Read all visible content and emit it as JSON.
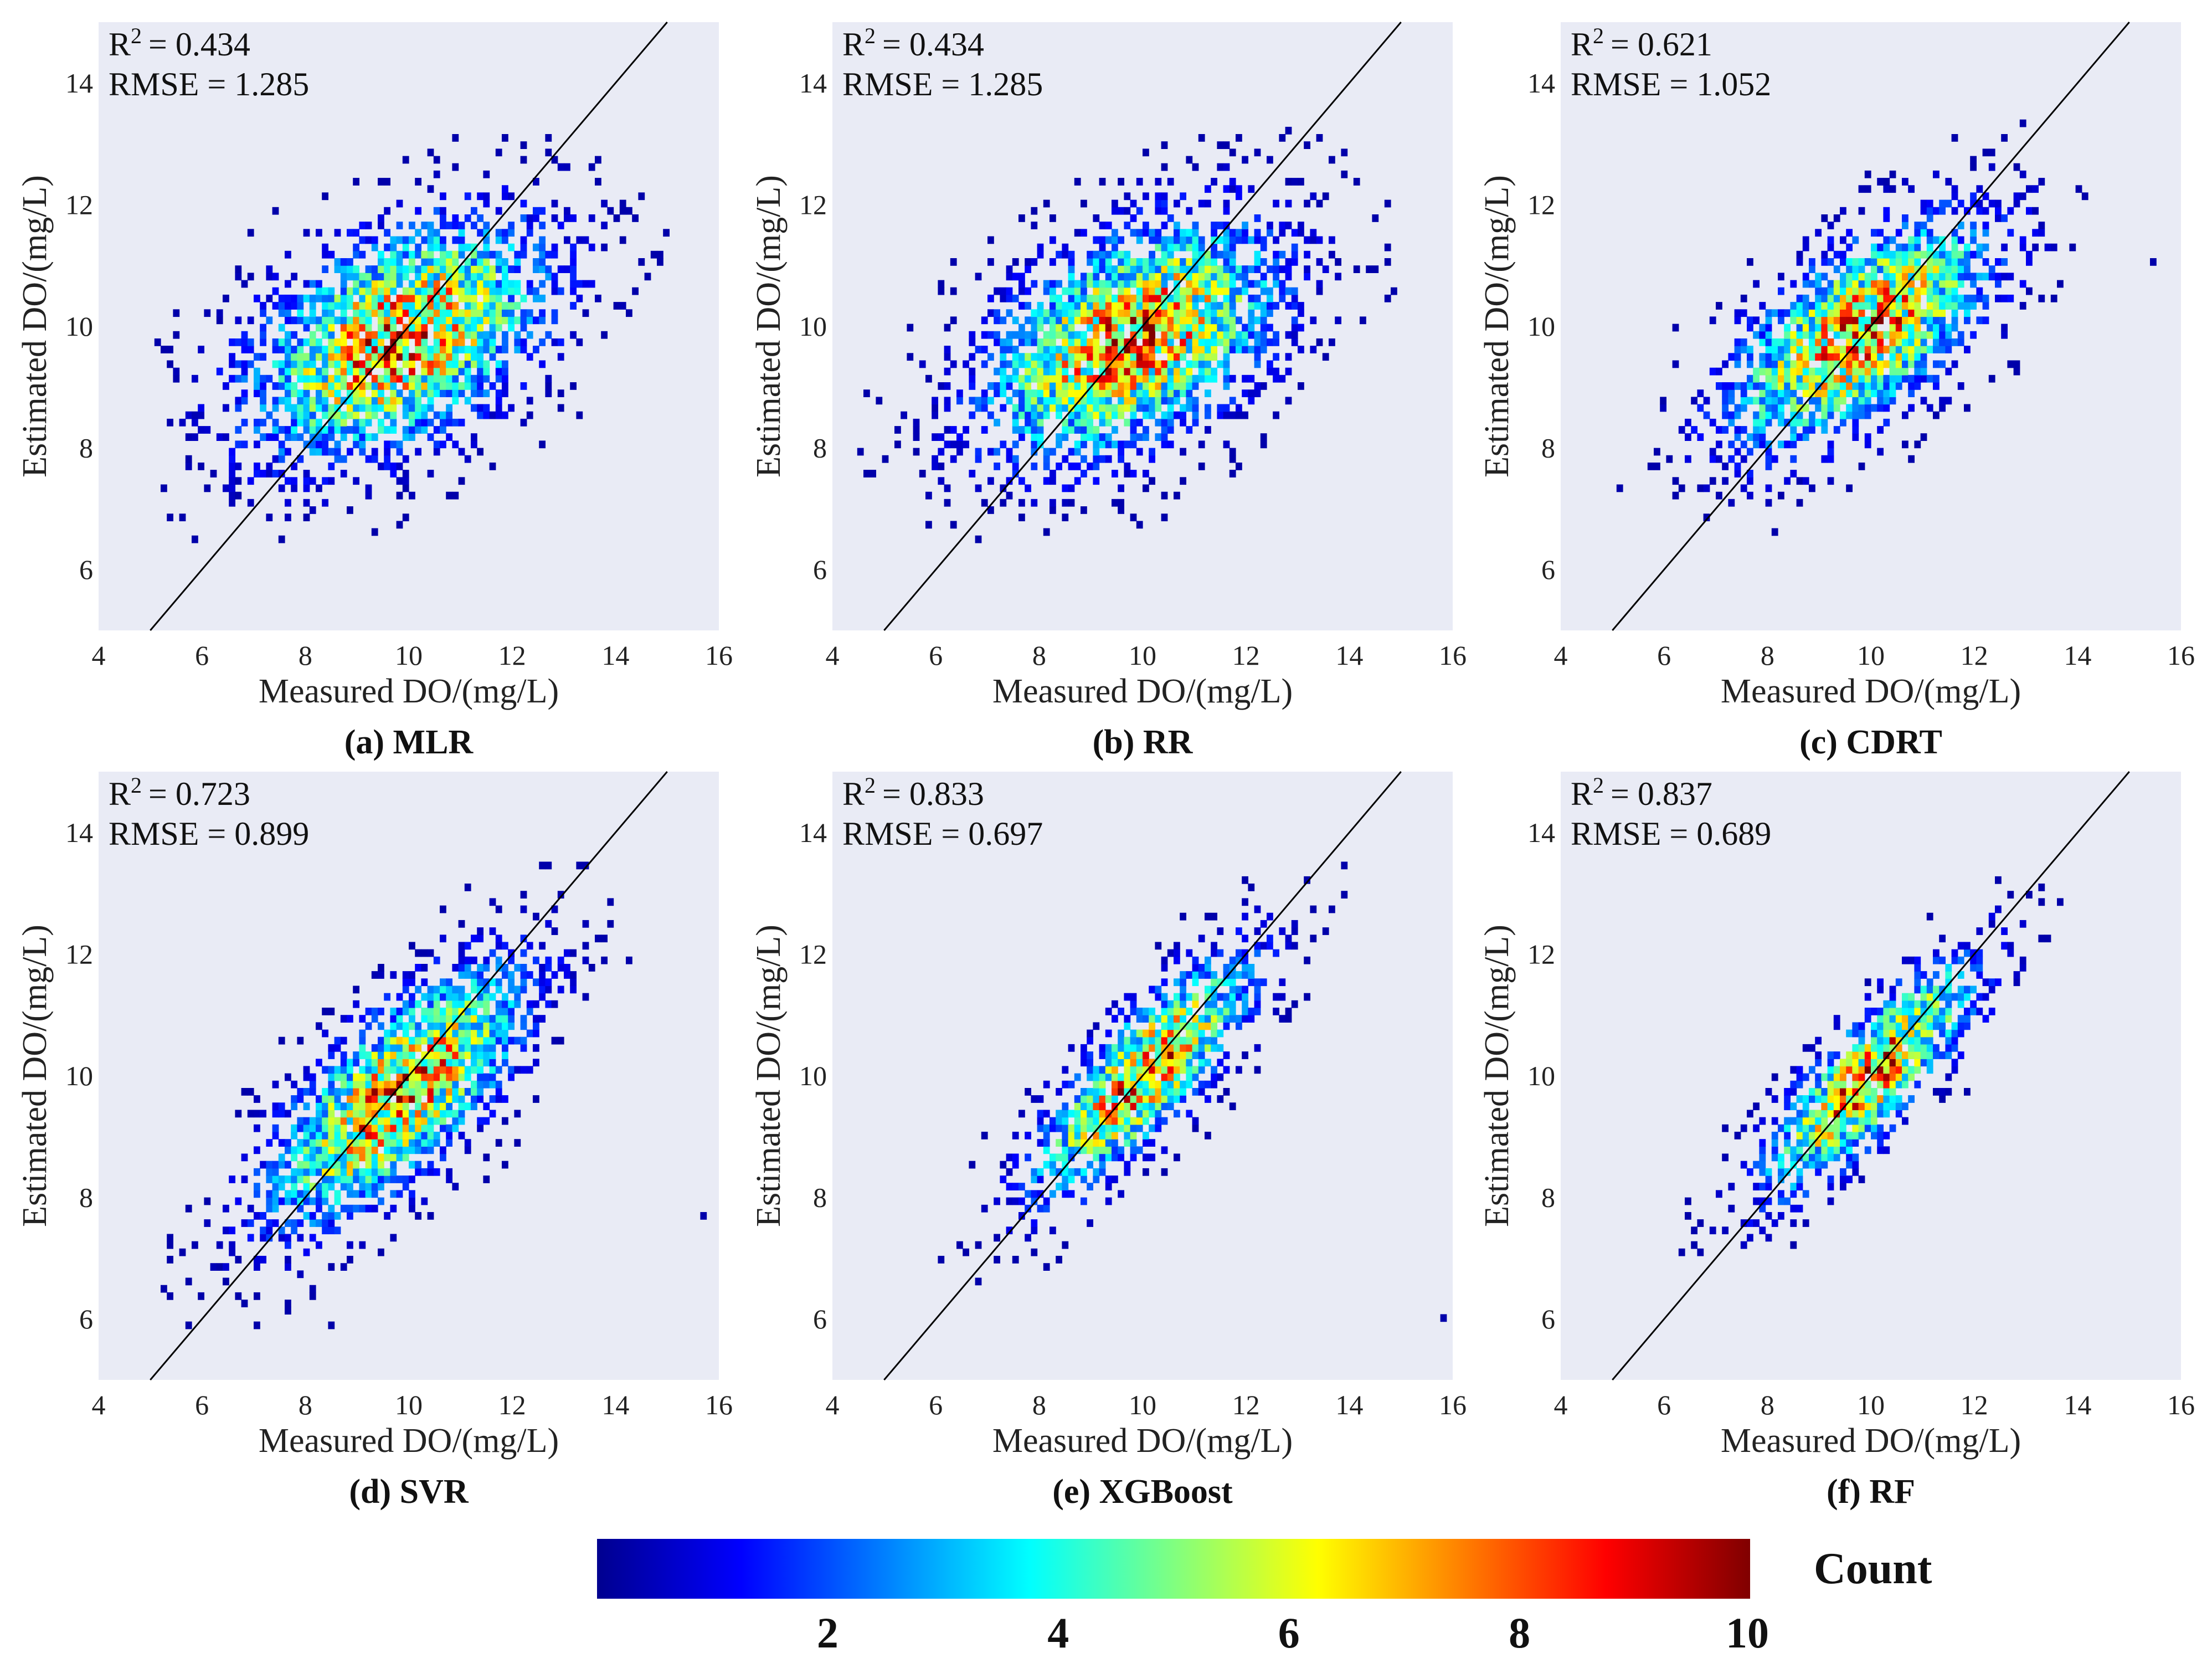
{
  "figure": {
    "colorbar": {
      "label": "Count",
      "range": [
        0,
        10
      ],
      "ticks": [
        "2",
        "4",
        "6",
        "8",
        "10"
      ],
      "stops": [
        "#00008f",
        "#0000ff",
        "#0080ff",
        "#00ffff",
        "#80ff80",
        "#ffff00",
        "#ff8000",
        "#ff0000",
        "#800000"
      ]
    },
    "background_color": "#e9ebf5"
  },
  "chart_data": [
    {
      "type": "heatmap",
      "title": "(a) MLR",
      "panel": "a",
      "model": "MLR",
      "stats": {
        "r2_label": "R",
        "r2_sup": "2",
        "r2_value": "= 0.434",
        "rmse_text": "RMSE = 1.285"
      },
      "xlabel": "Measured DO/(mg/L)",
      "ylabel": "Estimated DO/(mg/L)",
      "xlim": [
        4,
        16
      ],
      "ylim": [
        5,
        15
      ],
      "xticks": [
        "4",
        "6",
        "8",
        "10",
        "12",
        "14",
        "16"
      ],
      "yticks": [
        "6",
        "8",
        "10",
        "12",
        "14"
      ],
      "reference_line": "1:1",
      "distribution": {
        "center": [
          9.8,
          9.8
        ],
        "slope": 0.45,
        "spread_major": 1.9,
        "spread_minor": 1.0,
        "peak_count": 10
      }
    },
    {
      "type": "heatmap",
      "title": "(b) RR",
      "panel": "b",
      "model": "RR",
      "stats": {
        "r2_label": "R",
        "r2_sup": "2",
        "r2_value": "= 0.434",
        "rmse_text": "RMSE = 1.285"
      },
      "xlabel": "Measured DO/(mg/L)",
      "ylabel": "Estimated DO/(mg/L)",
      "xlim": [
        4,
        16
      ],
      "ylim": [
        5,
        15
      ],
      "xticks": [
        "4",
        "6",
        "8",
        "10",
        "12",
        "14",
        "16"
      ],
      "yticks": [
        "6",
        "8",
        "10",
        "12",
        "14"
      ],
      "reference_line": "1:1",
      "distribution": {
        "center": [
          9.8,
          9.8
        ],
        "slope": 0.45,
        "spread_major": 1.9,
        "spread_minor": 1.0,
        "peak_count": 10
      }
    },
    {
      "type": "heatmap",
      "title": "(c) CDRT",
      "panel": "c",
      "model": "CDRT",
      "stats": {
        "r2_label": "R",
        "r2_sup": "2",
        "r2_value": "= 0.621",
        "rmse_text": "RMSE = 1.052"
      },
      "xlabel": "Measured DO/(mg/L)",
      "ylabel": "Estimated DO/(mg/L)",
      "xlim": [
        4,
        16
      ],
      "ylim": [
        5,
        15
      ],
      "xticks": [
        "4",
        "6",
        "8",
        "10",
        "12",
        "14",
        "16"
      ],
      "yticks": [
        "6",
        "8",
        "10",
        "12",
        "14"
      ],
      "reference_line": "1:1",
      "distribution": {
        "center": [
          9.8,
          9.9
        ],
        "slope": 0.62,
        "spread_major": 1.8,
        "spread_minor": 0.8,
        "peak_count": 10
      }
    },
    {
      "type": "heatmap",
      "title": "(d) SVR",
      "panel": "d",
      "model": "SVR",
      "stats": {
        "r2_label": "R",
        "r2_sup": "2",
        "r2_value": "= 0.723",
        "rmse_text": "RMSE = 0.899"
      },
      "xlabel": "Measured DO/(mg/L)",
      "ylabel": "Estimated DO/(mg/L)",
      "xlim": [
        4,
        16
      ],
      "ylim": [
        5,
        15
      ],
      "xticks": [
        "4",
        "6",
        "8",
        "10",
        "12",
        "14",
        "16"
      ],
      "yticks": [
        "6",
        "8",
        "10",
        "12",
        "14"
      ],
      "reference_line": "1:1",
      "distribution": {
        "center": [
          9.8,
          9.7
        ],
        "slope": 0.8,
        "spread_major": 1.9,
        "spread_minor": 0.75,
        "peak_count": 10
      }
    },
    {
      "type": "heatmap",
      "title": "(e) XGBoost",
      "panel": "e",
      "model": "XGBoost",
      "stats": {
        "r2_label": "R",
        "r2_sup": "2",
        "r2_value": "= 0.833",
        "rmse_text": "RMSE = 0.697"
      },
      "xlabel": "Measured DO/(mg/L)",
      "ylabel": "Estimated DO/(mg/L)",
      "xlim": [
        4,
        16
      ],
      "ylim": [
        5,
        15
      ],
      "xticks": [
        "4",
        "6",
        "8",
        "10",
        "12",
        "14",
        "16"
      ],
      "yticks": [
        "6",
        "8",
        "10",
        "12",
        "14"
      ],
      "reference_line": "1:1",
      "distribution": {
        "center": [
          10.0,
          10.0
        ],
        "slope": 0.9,
        "spread_major": 1.7,
        "spread_minor": 0.55,
        "peak_count": 10
      }
    },
    {
      "type": "heatmap",
      "title": "(f) RF",
      "panel": "f",
      "model": "RF",
      "stats": {
        "r2_label": "R",
        "r2_sup": "2",
        "r2_value": "= 0.837",
        "rmse_text": "RMSE = 0.689"
      },
      "xlabel": "Measured DO/(mg/L)",
      "ylabel": "Estimated DO/(mg/L)",
      "xlim": [
        4,
        16
      ],
      "ylim": [
        5,
        15
      ],
      "xticks": [
        "4",
        "6",
        "8",
        "10",
        "12",
        "14",
        "16"
      ],
      "yticks": [
        "6",
        "8",
        "10",
        "12",
        "14"
      ],
      "reference_line": "1:1",
      "distribution": {
        "center": [
          10.0,
          10.0
        ],
        "slope": 0.9,
        "spread_major": 1.7,
        "spread_minor": 0.5,
        "peak_count": 10
      }
    }
  ]
}
